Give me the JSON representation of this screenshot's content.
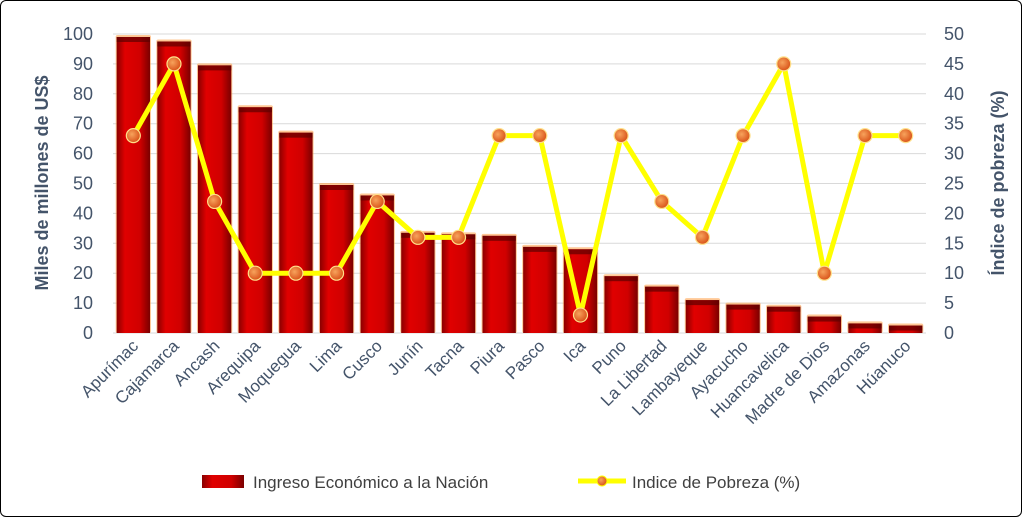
{
  "chart_data": {
    "type": "bar",
    "categories": [
      "Apurímac",
      "Cajamarca",
      "Ancash",
      "Arequipa",
      "Moquegua",
      "Lima",
      "Cusco",
      "Junín",
      "Tacna",
      "Piura",
      "Pasco",
      "Ica",
      "Puno",
      "La Libertad",
      "Lambayeque",
      "Ayacucho",
      "Huancavelica",
      "Madre de Dios",
      "Amazonas",
      "Húanuco"
    ],
    "series": [
      {
        "name": "Ingreso Económico a la Nación",
        "type": "bar",
        "axis": "left",
        "values": [
          99,
          97.5,
          89.5,
          75.5,
          67,
          49.5,
          46,
          33.5,
          33,
          32.5,
          28.8,
          28,
          19,
          15.5,
          11,
          9.5,
          8.8,
          5.5,
          3.2,
          2.5
        ]
      },
      {
        "name": "Indice de Pobreza (%)",
        "type": "line",
        "axis": "right",
        "values": [
          33,
          45,
          22,
          10,
          10,
          10,
          22,
          16,
          16,
          33,
          33,
          3,
          33,
          22,
          16,
          33,
          45,
          10,
          33,
          33
        ]
      }
    ],
    "ylabel": "Miles de millones de US$",
    "y2label": "Índice de pobreza (%)",
    "ylim": [
      0,
      100
    ],
    "y2lim": [
      0,
      50
    ],
    "yticks": [
      "0",
      "10",
      "20",
      "30",
      "40",
      "50",
      "60",
      "70",
      "80",
      "90",
      "100"
    ],
    "y2ticks": [
      "0",
      "5",
      "10",
      "15",
      "20",
      "25",
      "30",
      "35",
      "40",
      "45",
      "50"
    ],
    "grid": true,
    "legend_position": "bottom",
    "colors": {
      "bar": "#d40000",
      "bar_dark": "#7a0000",
      "line": "#ffff00",
      "marker": "#e8702a",
      "axis_text": "#44546a",
      "grid": "#d9d9d9"
    }
  }
}
